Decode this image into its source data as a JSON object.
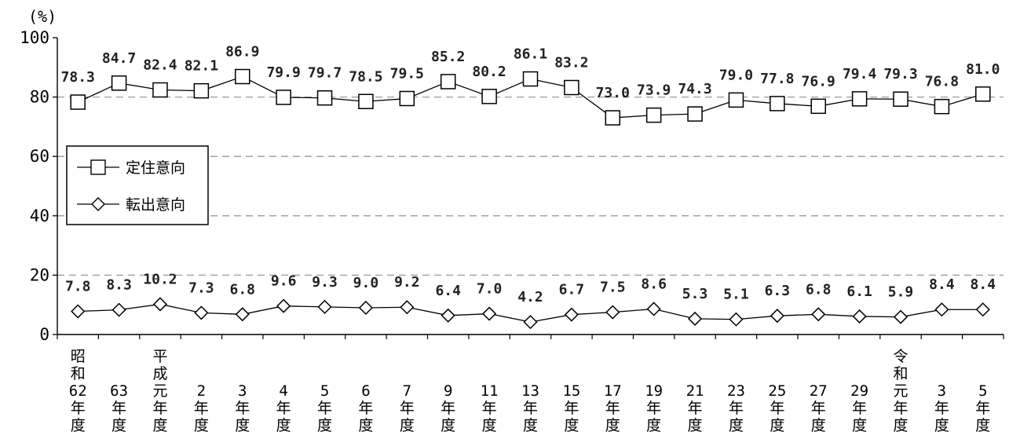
{
  "chart_data": {
    "type": "line",
    "unit_label": "(%)",
    "ylim": [
      0,
      100
    ],
    "yticks": [
      "0",
      "20",
      "40",
      "60",
      "80",
      "100"
    ],
    "grid": "horizontal dashed",
    "legend_position": "left-middle",
    "categories": [
      [
        "昭",
        "和",
        "62",
        "年",
        "度"
      ],
      [
        "63",
        "年",
        "度"
      ],
      [
        "平",
        "成",
        "元",
        "年",
        "度"
      ],
      [
        "2",
        "年",
        "度"
      ],
      [
        "3",
        "年",
        "度"
      ],
      [
        "4",
        "年",
        "度"
      ],
      [
        "5",
        "年",
        "度"
      ],
      [
        "6",
        "年",
        "度"
      ],
      [
        "7",
        "年",
        "度"
      ],
      [
        "9",
        "年",
        "度"
      ],
      [
        "11",
        "年",
        "度"
      ],
      [
        "13",
        "年",
        "度"
      ],
      [
        "15",
        "年",
        "度"
      ],
      [
        "17",
        "年",
        "度"
      ],
      [
        "19",
        "年",
        "度"
      ],
      [
        "21",
        "年",
        "度"
      ],
      [
        "23",
        "年",
        "度"
      ],
      [
        "25",
        "年",
        "度"
      ],
      [
        "27",
        "年",
        "度"
      ],
      [
        "29",
        "年",
        "度"
      ],
      [
        "令",
        "和",
        "元",
        "年",
        "度"
      ],
      [
        "3",
        "年",
        "度"
      ],
      [
        "5",
        "年",
        "度"
      ]
    ],
    "series": [
      {
        "name": "定住意向",
        "marker": "square",
        "values": [
          78.3,
          84.7,
          82.4,
          82.1,
          86.9,
          79.9,
          79.7,
          78.5,
          79.5,
          85.2,
          80.2,
          86.1,
          83.2,
          73.0,
          73.9,
          74.3,
          79.0,
          77.8,
          76.9,
          79.4,
          79.3,
          76.8,
          81.0
        ],
        "labels": [
          "78.3",
          "84.7",
          "82.4",
          "82.1",
          "86.9",
          "79.9",
          "79.7",
          "78.5",
          "79.5",
          "85.2",
          "80.2",
          "86.1",
          "83.2",
          "73.0",
          "73.9",
          "74.3",
          "79.0",
          "77.8",
          "76.9",
          "79.4",
          "79.3",
          "76.8",
          "81.0"
        ]
      },
      {
        "name": "転出意向",
        "marker": "diamond",
        "values": [
          7.8,
          8.3,
          10.2,
          7.3,
          6.8,
          9.6,
          9.3,
          9.0,
          9.2,
          6.4,
          7.0,
          4.2,
          6.7,
          7.5,
          8.6,
          5.3,
          5.1,
          6.3,
          6.8,
          6.1,
          5.9,
          8.4,
          8.4
        ],
        "labels": [
          "7.8",
          "8.3",
          "10.2",
          "7.3",
          "6.8",
          "9.6",
          "9.3",
          "9.0",
          "9.2",
          "6.4",
          "7.0",
          "4.2",
          "6.7",
          "7.5",
          "8.6",
          "5.3",
          "5.1",
          "6.3",
          "6.8",
          "6.1",
          "5.9",
          "8.4",
          "8.4"
        ]
      }
    ]
  },
  "colors": {
    "line": "#000000",
    "grid": "#9a9a9a",
    "marker_fill": "#ffffff"
  }
}
